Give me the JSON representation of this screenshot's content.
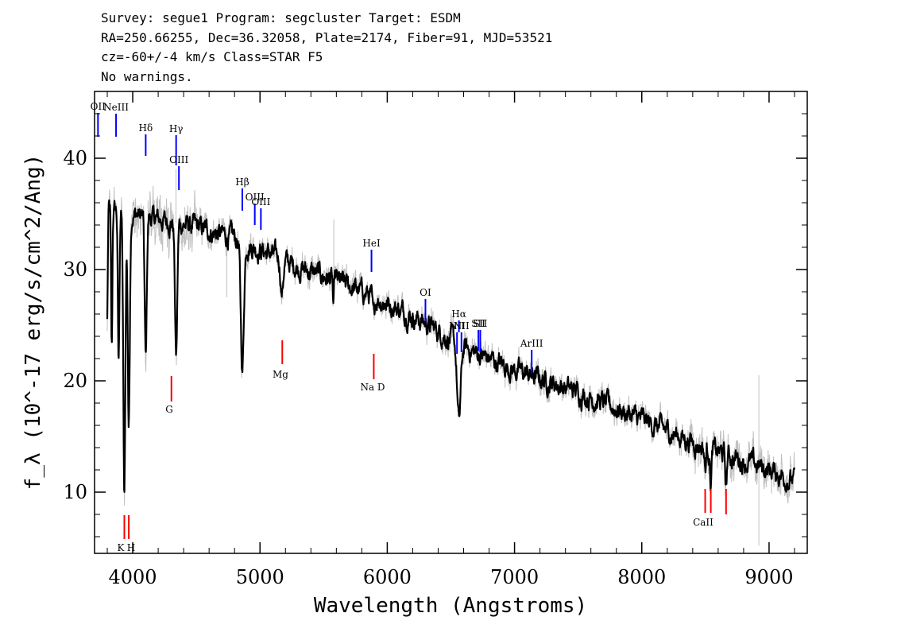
{
  "header": {
    "line1": "Survey: segue1 Program: segcluster Target: ESDM",
    "line2": "RA=250.66255, Dec=36.32058, Plate=2174, Fiber=91, MJD=53521",
    "line3": "cz=-60+/-4 km/s Class=STAR F5",
    "line4": "No warnings."
  },
  "chart_data": {
    "type": "line",
    "xlabel": "Wavelength (Angstroms)",
    "ylabel": "f_λ (10^-17 erg/s/cm^2/Ang)",
    "xlim": [
      3700,
      9300
    ],
    "ylim": [
      4.5,
      46
    ],
    "xticks": [
      4000,
      5000,
      6000,
      7000,
      8000,
      9000
    ],
    "yticks": [
      10,
      20,
      30,
      40
    ],
    "colors": {
      "data": "#c0c0c0",
      "model": "#000000",
      "emission": "#0000ff",
      "absorption": "#ff0000"
    },
    "continuum": [
      [
        3800,
        35.5
      ],
      [
        4000,
        35.0
      ],
      [
        4200,
        34.5
      ],
      [
        4500,
        33.8
      ],
      [
        4800,
        32.8
      ],
      [
        5000,
        31.8
      ],
      [
        5300,
        30.2
      ],
      [
        5600,
        29.0
      ],
      [
        6000,
        27.0
      ],
      [
        6300,
        25.2
      ],
      [
        6600,
        23.0
      ],
      [
        7000,
        21.0
      ],
      [
        7500,
        19.0
      ],
      [
        8000,
        16.5
      ],
      [
        8500,
        14.0
      ],
      [
        9000,
        12.0
      ],
      [
        9200,
        11.0
      ]
    ],
    "absorption_features": [
      {
        "center": 3798,
        "width": 5,
        "depth": 11
      },
      {
        "center": 3835,
        "width": 5,
        "depth": 13
      },
      {
        "center": 3889,
        "width": 6,
        "depth": 14
      },
      {
        "center": 3934,
        "width": 8,
        "depth": 26
      },
      {
        "center": 3969,
        "width": 8,
        "depth": 19
      },
      {
        "center": 4102,
        "width": 8,
        "depth": 13
      },
      {
        "center": 4341,
        "width": 9,
        "depth": 12
      },
      {
        "center": 4861,
        "width": 12,
        "depth": 11.5
      },
      {
        "center": 5172,
        "width": 10,
        "depth": 3
      },
      {
        "center": 5577,
        "width": 4,
        "depth": 3
      },
      {
        "center": 5892,
        "width": 8,
        "depth": 2
      },
      {
        "center": 6563,
        "width": 14,
        "depth": 7
      },
      {
        "center": 8498,
        "width": 6,
        "depth": 2
      },
      {
        "center": 8542,
        "width": 6,
        "depth": 3
      },
      {
        "center": 8662,
        "width": 6,
        "depth": 3
      }
    ],
    "emission_lines": [
      {
        "label": "OII",
        "wavelength": 3727
      },
      {
        "label": "NeIII",
        "wavelength": 3869
      },
      {
        "label": "Hδ",
        "wavelength": 4102
      },
      {
        "label": "Hγ",
        "wavelength": 4341
      },
      {
        "label": "OIII",
        "wavelength": 4363
      },
      {
        "label": "Hβ",
        "wavelength": 4861
      },
      {
        "label": "OIII",
        "wavelength": 4959
      },
      {
        "label": "OIII",
        "wavelength": 5007
      },
      {
        "label": "HeI",
        "wavelength": 5876
      },
      {
        "label": "OI",
        "wavelength": 6300
      },
      {
        "label": "NII",
        "wavelength": 6548
      },
      {
        "label": "Hα",
        "wavelength": 6563
      },
      {
        "label": "NII",
        "wavelength": 6583
      },
      {
        "label": "SII",
        "wavelength": 6716
      },
      {
        "label": "SII",
        "wavelength": 6731
      },
      {
        "label": "ArIII",
        "wavelength": 7135
      }
    ],
    "absorption_lines": [
      {
        "label": "K",
        "wavelength": 3934
      },
      {
        "label": "H",
        "wavelength": 3969
      },
      {
        "label": "G",
        "wavelength": 4304
      },
      {
        "label": "Mg",
        "wavelength": 5175
      },
      {
        "label": "Na D",
        "wavelength": 5894
      },
      {
        "label": "CaII",
        "wavelength": 8498
      },
      {
        "label": "CaII",
        "wavelength": 8542
      },
      {
        "label": "CaII",
        "wavelength": 8662
      }
    ]
  }
}
